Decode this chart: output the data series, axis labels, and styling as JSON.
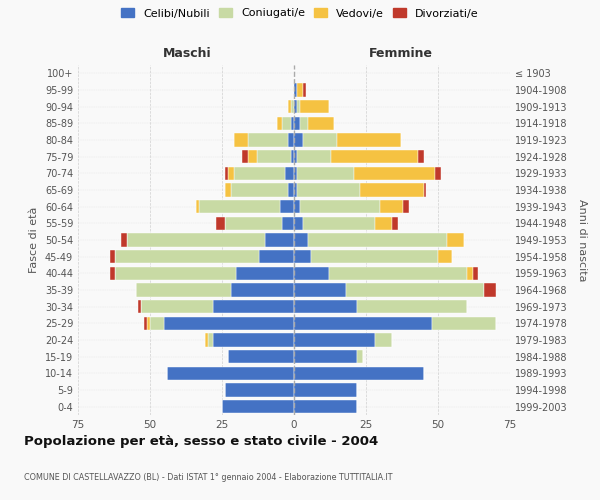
{
  "age_groups": [
    "0-4",
    "5-9",
    "10-14",
    "15-19",
    "20-24",
    "25-29",
    "30-34",
    "35-39",
    "40-44",
    "45-49",
    "50-54",
    "55-59",
    "60-64",
    "65-69",
    "70-74",
    "75-79",
    "80-84",
    "85-89",
    "90-94",
    "95-99",
    "100+"
  ],
  "birth_years": [
    "1999-2003",
    "1994-1998",
    "1989-1993",
    "1984-1988",
    "1979-1983",
    "1974-1978",
    "1969-1973",
    "1964-1968",
    "1959-1963",
    "1954-1958",
    "1949-1953",
    "1944-1948",
    "1939-1943",
    "1934-1938",
    "1929-1933",
    "1924-1928",
    "1919-1923",
    "1914-1918",
    "1909-1913",
    "1904-1908",
    "≤ 1903"
  ],
  "maschi": {
    "celibi": [
      25,
      24,
      44,
      23,
      28,
      45,
      28,
      22,
      20,
      12,
      10,
      4,
      5,
      2,
      3,
      1,
      2,
      1,
      0,
      0,
      0
    ],
    "coniugati": [
      0,
      0,
      0,
      0,
      2,
      5,
      25,
      33,
      42,
      50,
      48,
      20,
      28,
      20,
      18,
      12,
      14,
      3,
      1,
      0,
      0
    ],
    "vedovi": [
      0,
      0,
      0,
      0,
      1,
      1,
      0,
      0,
      0,
      0,
      0,
      0,
      1,
      2,
      2,
      3,
      5,
      2,
      1,
      0,
      0
    ],
    "divorziati": [
      0,
      0,
      0,
      0,
      0,
      1,
      1,
      0,
      2,
      2,
      2,
      3,
      0,
      0,
      1,
      2,
      0,
      0,
      0,
      0,
      0
    ]
  },
  "femmine": {
    "nubili": [
      22,
      22,
      45,
      22,
      28,
      48,
      22,
      18,
      12,
      6,
      5,
      3,
      2,
      1,
      1,
      1,
      3,
      2,
      1,
      1,
      0
    ],
    "coniugate": [
      0,
      0,
      0,
      2,
      6,
      22,
      38,
      48,
      48,
      44,
      48,
      25,
      28,
      22,
      20,
      12,
      12,
      3,
      1,
      0,
      0
    ],
    "vedove": [
      0,
      0,
      0,
      0,
      0,
      0,
      0,
      0,
      2,
      5,
      6,
      6,
      8,
      22,
      28,
      30,
      22,
      9,
      10,
      2,
      0
    ],
    "divorziate": [
      0,
      0,
      0,
      0,
      0,
      0,
      0,
      4,
      2,
      0,
      0,
      2,
      2,
      1,
      2,
      2,
      0,
      0,
      0,
      1,
      0
    ]
  },
  "colors": {
    "celibi": "#4472C4",
    "coniugati": "#c8daa4",
    "vedovi": "#f5c242",
    "divorziati": "#c0392b"
  },
  "title": "Popolazione per età, sesso e stato civile - 2004",
  "subtitle": "COMUNE DI CASTELLAVAZZO (BL) - Dati ISTAT 1° gennaio 2004 - Elaborazione TUTTITALIA.IT",
  "xlabel_left": "Maschi",
  "xlabel_right": "Femmine",
  "ylabel_left": "Fasce di età",
  "ylabel_right": "Anni di nascita",
  "xlim": 75,
  "background_color": "#f9f9f9",
  "grid_color": "#cccccc"
}
